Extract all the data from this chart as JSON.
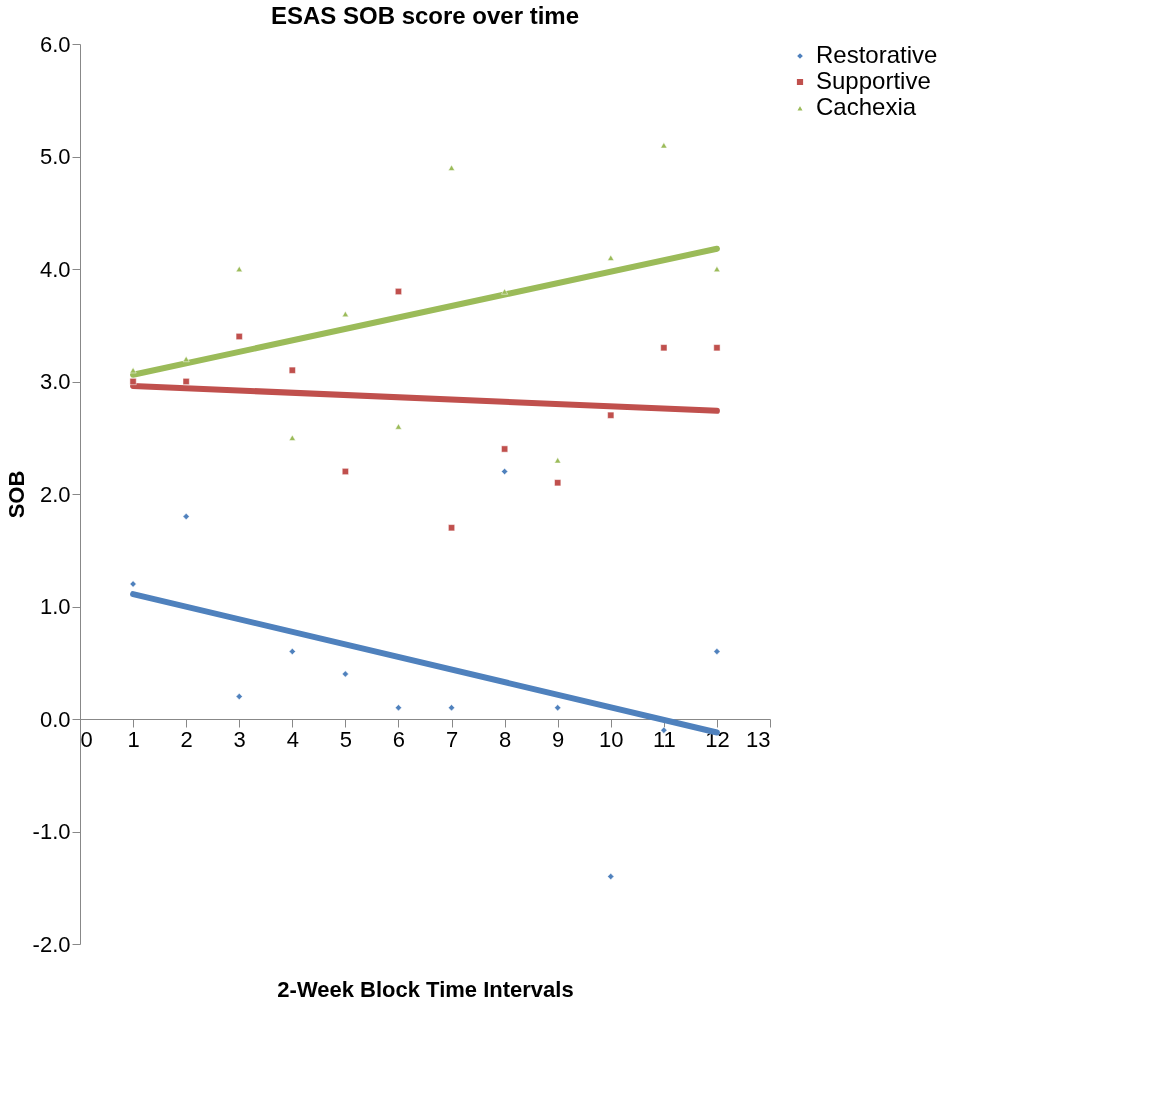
{
  "chart_data": {
    "type": "scatter",
    "title": "ESAS SOB score over time",
    "xlabel": "2-Week Block Time Intervals",
    "ylabel": "SOB",
    "xlim": [
      0,
      13
    ],
    "xticks": [
      0,
      1,
      2,
      3,
      4,
      5,
      6,
      7,
      8,
      9,
      10,
      11,
      12,
      13
    ],
    "ylim": [
      -2,
      6
    ],
    "yticks": [
      {
        "value": -2,
        "label": "-2.0"
      },
      {
        "value": -1,
        "label": "-1.0"
      },
      {
        "value": 0,
        "label": "0.0"
      },
      {
        "value": 1,
        "label": "1.0"
      },
      {
        "value": 2,
        "label": "2.0"
      },
      {
        "value": 3,
        "label": "3.0"
      },
      {
        "value": 4,
        "label": "4.0"
      },
      {
        "value": 5,
        "label": "5.0"
      },
      {
        "value": 6,
        "label": "6.0"
      }
    ],
    "grid": false,
    "legend": "right",
    "series": [
      {
        "name": "Restorative",
        "marker": "diamond",
        "color": "#4f81bd",
        "x": [
          1,
          2,
          3,
          4,
          5,
          6,
          7,
          8,
          9,
          10,
          11,
          12
        ],
        "values": [
          1.2,
          1.8,
          0.2,
          0.6,
          0.4,
          0.1,
          0.1,
          2.2,
          0.1,
          -1.4,
          -0.1,
          0.6
        ]
      },
      {
        "name": "Supportive",
        "marker": "square",
        "color": "#c0504d",
        "x": [
          1,
          2,
          3,
          4,
          5,
          6,
          7,
          8,
          9,
          10,
          11,
          12
        ],
        "values": [
          3.0,
          3.0,
          3.4,
          3.1,
          2.2,
          3.8,
          1.7,
          2.4,
          2.1,
          2.7,
          3.3,
          3.3
        ]
      },
      {
        "name": "Cachexia",
        "marker": "triangle",
        "color": "#9bbb59",
        "x": [
          1,
          2,
          3,
          4,
          5,
          6,
          7,
          8,
          9,
          10,
          11,
          12
        ],
        "values": [
          3.1,
          3.2,
          4.0,
          2.5,
          3.6,
          2.6,
          4.9,
          3.8,
          2.3,
          4.1,
          5.1,
          4.0
        ]
      },
      {
        "type": "line",
        "color": "#4f81bd",
        "x": [
          1,
          12
        ],
        "values": [
          1.11,
          -0.12
        ]
      },
      {
        "type": "line",
        "color": "#c0504d",
        "x": [
          1,
          12
        ],
        "values": [
          2.96,
          2.74
        ]
      },
      {
        "type": "line",
        "color": "#9bbb59",
        "x": [
          1,
          12
        ],
        "values": [
          3.06,
          4.18
        ]
      }
    ]
  }
}
